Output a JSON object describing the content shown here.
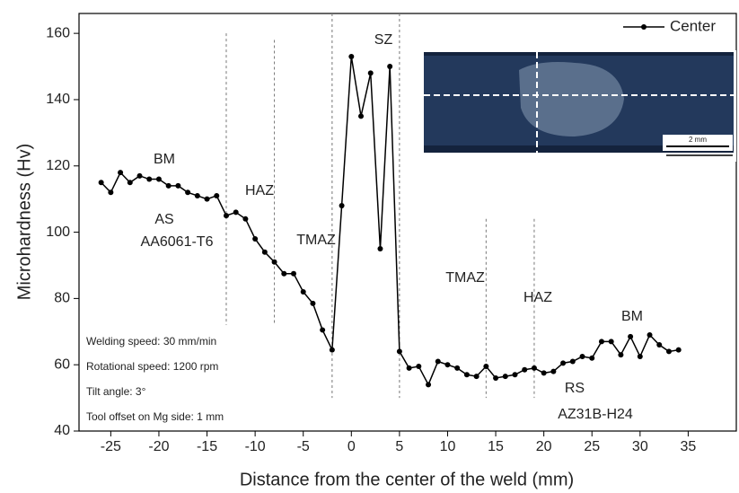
{
  "chart_data": {
    "type": "line",
    "x_label": "Distance from the center of the weld (mm)",
    "y_label": "Microhardness (Hv)",
    "x": [
      -26,
      -25,
      -24,
      -23,
      -22,
      -21,
      -20,
      -19,
      -18,
      -17,
      -16,
      -15,
      -14,
      -13,
      -12,
      -11,
      -10,
      -9,
      -8,
      -7,
      -6,
      -5,
      -4,
      -3,
      -2,
      -1,
      0,
      1,
      2,
      3,
      4,
      5,
      6,
      7,
      8,
      9,
      10,
      11,
      12,
      13,
      14,
      15,
      16,
      17,
      18,
      19,
      20,
      21,
      22,
      23,
      24,
      25,
      26,
      27,
      28,
      29,
      30,
      31,
      32,
      33,
      34
    ],
    "series": [
      {
        "name": "Center",
        "color": "#000000",
        "values": [
          115,
          112,
          118,
          115,
          117,
          116,
          116,
          114,
          114,
          112,
          111,
          110,
          111,
          105,
          106,
          104,
          98,
          94,
          91,
          87.5,
          87.5,
          82,
          78.5,
          70.5,
          64.5,
          108,
          153,
          135,
          148,
          95,
          150,
          64,
          59,
          59.5,
          54,
          61,
          60,
          59,
          57,
          56.5,
          59.5,
          56,
          56.5,
          57,
          58.5,
          59,
          57.5,
          58,
          60.5,
          61,
          62.5,
          62,
          67,
          67,
          63,
          68.5,
          62.5,
          69,
          66,
          64,
          64.5
        ]
      }
    ],
    "xlim": [
      -28.3,
      40
    ],
    "ylim": [
      40,
      166
    ],
    "xticks": [
      -25,
      -20,
      -15,
      -10,
      -5,
      0,
      5,
      10,
      15,
      20,
      25,
      30,
      35
    ],
    "yticks": [
      40,
      60,
      80,
      100,
      120,
      140,
      160
    ],
    "reference_lines": [
      -13,
      -8,
      -2,
      5,
      14,
      19
    ],
    "legend": "top-right",
    "annotations": [
      "BM",
      "HAZ",
      "TMAZ",
      "SZ",
      "TMAZ",
      "HAZ",
      "BM",
      "AS",
      "AA6061-T6",
      "RS",
      "AZ31B-H24"
    ],
    "notes": [
      "Welding speed: 30 mm/min",
      "Rotational speed: 1200 rpm",
      "Tilt angle: 3°",
      "Tool offset on Mg side: 1 mm"
    ],
    "inset_scale_label": "2 mm"
  }
}
